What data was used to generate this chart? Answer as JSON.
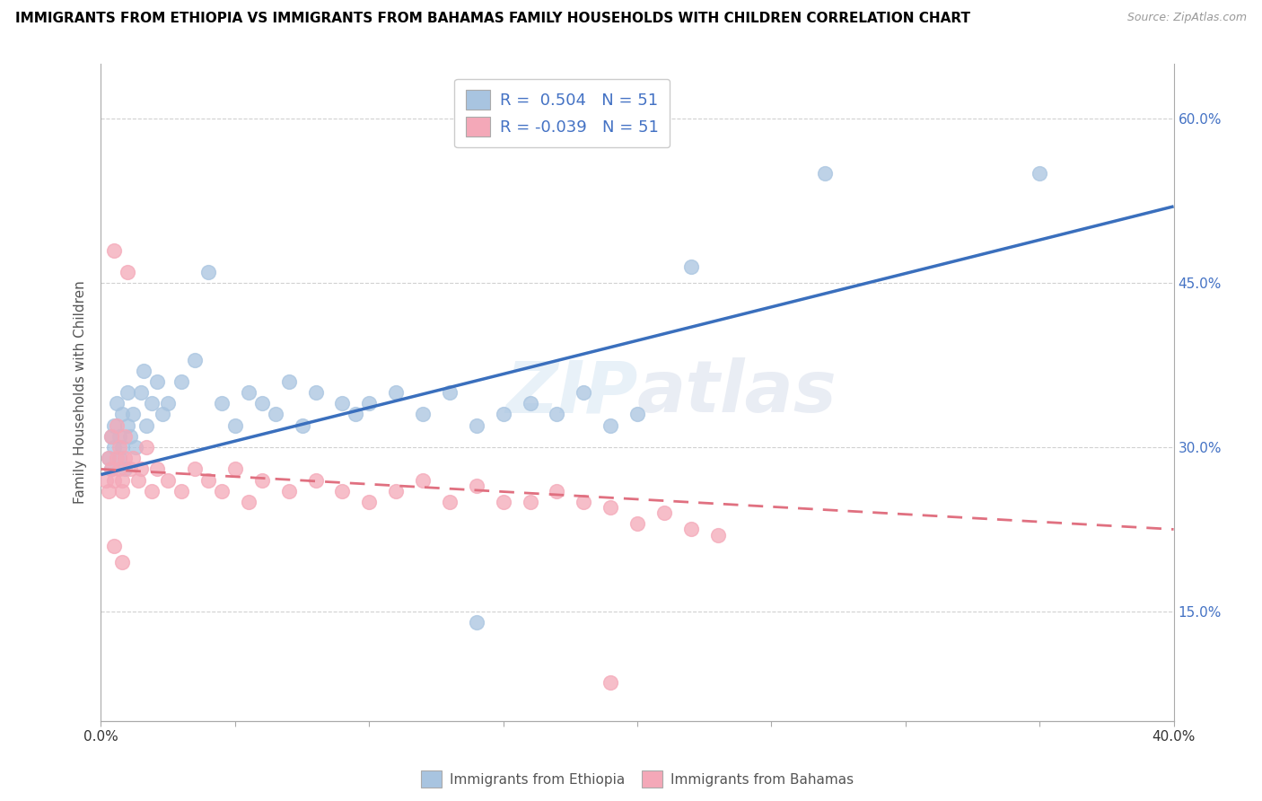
{
  "title": "IMMIGRANTS FROM ETHIOPIA VS IMMIGRANTS FROM BAHAMAS FAMILY HOUSEHOLDS WITH CHILDREN CORRELATION CHART",
  "source": "Source: ZipAtlas.com",
  "ylabel": "Family Households with Children",
  "r_ethiopia": 0.504,
  "n_ethiopia": 51,
  "r_bahamas": -0.039,
  "n_bahamas": 51,
  "xlim": [
    0.0,
    40.0
  ],
  "ylim": [
    5.0,
    65.0
  ],
  "yticks": [
    15.0,
    30.0,
    45.0,
    60.0
  ],
  "color_ethiopia": "#a8c4e0",
  "color_bahamas": "#f4a8b8",
  "line_color_ethiopia": "#3a6fbd",
  "line_color_bahamas": "#e07080",
  "legend_ethiopia": "Immigrants from Ethiopia",
  "legend_bahamas": "Immigrants from Bahamas",
  "eth_line_x0": 0.0,
  "eth_line_y0": 27.5,
  "eth_line_x1": 40.0,
  "eth_line_y1": 52.0,
  "bah_line_x0": 0.0,
  "bah_line_y0": 28.0,
  "bah_line_x1": 40.0,
  "bah_line_y1": 22.5,
  "ethiopia_x": [
    0.3,
    0.4,
    0.4,
    0.5,
    0.5,
    0.6,
    0.7,
    0.7,
    0.8,
    0.8,
    0.9,
    1.0,
    1.0,
    1.1,
    1.2,
    1.3,
    1.5,
    1.6,
    1.7,
    1.9,
    2.1,
    2.3,
    2.5,
    3.0,
    3.5,
    4.0,
    4.5,
    5.0,
    5.5,
    6.0,
    6.5,
    7.0,
    7.5,
    8.0,
    9.0,
    9.5,
    10.0,
    11.0,
    12.0,
    13.0,
    14.0,
    15.0,
    16.0,
    17.0,
    18.0,
    19.0,
    20.0,
    22.0,
    27.0,
    35.0,
    14.0
  ],
  "ethiopia_y": [
    29.0,
    31.0,
    28.0,
    30.0,
    32.0,
    34.0,
    31.0,
    29.0,
    33.0,
    30.0,
    28.0,
    32.0,
    35.0,
    31.0,
    33.0,
    30.0,
    35.0,
    37.0,
    32.0,
    34.0,
    36.0,
    33.0,
    34.0,
    36.0,
    38.0,
    46.0,
    34.0,
    32.0,
    35.0,
    34.0,
    33.0,
    36.0,
    32.0,
    35.0,
    34.0,
    33.0,
    34.0,
    35.0,
    33.0,
    35.0,
    32.0,
    33.0,
    34.0,
    33.0,
    35.0,
    32.0,
    33.0,
    46.5,
    55.0,
    55.0,
    14.0
  ],
  "bahamas_x": [
    0.2,
    0.3,
    0.3,
    0.4,
    0.4,
    0.5,
    0.5,
    0.6,
    0.6,
    0.7,
    0.7,
    0.8,
    0.8,
    0.9,
    0.9,
    1.0,
    1.1,
    1.2,
    1.4,
    1.5,
    1.7,
    1.9,
    2.1,
    2.5,
    3.0,
    3.5,
    4.0,
    4.5,
    5.0,
    5.5,
    6.0,
    7.0,
    8.0,
    9.0,
    10.0,
    11.0,
    12.0,
    13.0,
    14.0,
    15.0,
    16.0,
    17.0,
    18.0,
    19.0,
    20.0,
    21.0,
    22.0,
    23.0,
    0.5,
    0.8,
    19.0
  ],
  "bahamas_y": [
    27.0,
    29.0,
    26.0,
    28.0,
    31.0,
    48.0,
    27.0,
    29.0,
    32.0,
    28.0,
    30.0,
    27.0,
    26.0,
    29.0,
    31.0,
    46.0,
    28.0,
    29.0,
    27.0,
    28.0,
    30.0,
    26.0,
    28.0,
    27.0,
    26.0,
    28.0,
    27.0,
    26.0,
    28.0,
    25.0,
    27.0,
    26.0,
    27.0,
    26.0,
    25.0,
    26.0,
    27.0,
    25.0,
    26.5,
    25.0,
    25.0,
    26.0,
    25.0,
    24.5,
    23.0,
    24.0,
    22.5,
    22.0,
    21.0,
    19.5,
    8.5
  ]
}
